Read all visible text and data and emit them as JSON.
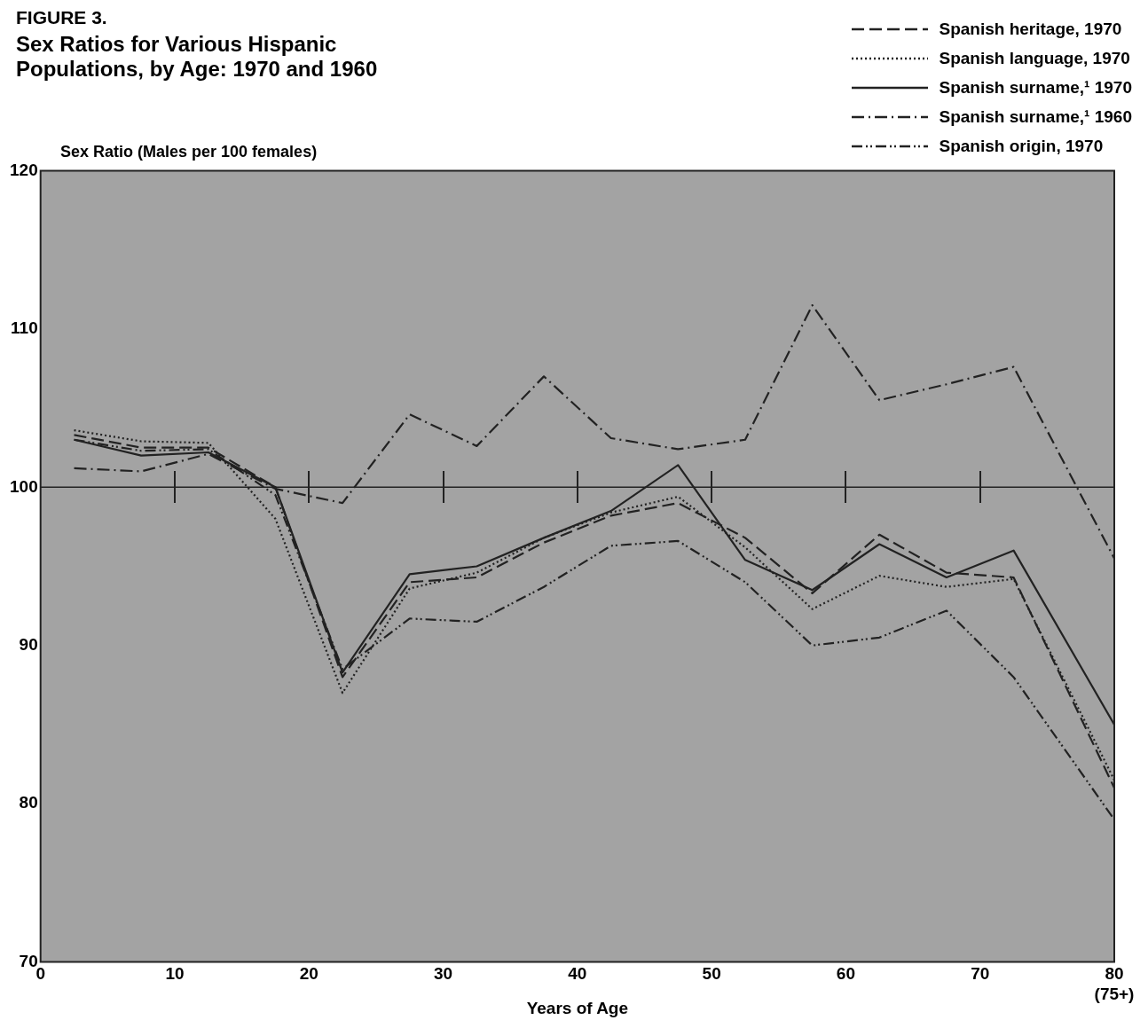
{
  "chart_data": {
    "type": "line",
    "subtitle": "FIGURE 3.",
    "title": "Sex Ratios for Various Hispanic Populations, by Age: 1970 and 1960",
    "xlabel": "Years of Age",
    "ylabel": "Sex Ratio (Males per 100 females)",
    "x": [
      2.5,
      7.5,
      12.5,
      17.5,
      22.5,
      27.5,
      32.5,
      37.5,
      42.5,
      47.5,
      52.5,
      57.5,
      62.5,
      67.5,
      72.5,
      80
    ],
    "series": [
      {
        "name": "Spanish heritage, 1970",
        "color": "#222222",
        "line_style": "dashed",
        "values": [
          103.3,
          102.5,
          102.5,
          100.0,
          88.0,
          94.0,
          94.3,
          96.5,
          98.2,
          99.0,
          96.8,
          93.3,
          97.0,
          94.6,
          94.3,
          81.0
        ]
      },
      {
        "name": "Spanish language, 1970",
        "color": "#222222",
        "line_style": "dotted",
        "values": [
          103.6,
          102.9,
          102.8,
          98.0,
          87.0,
          93.6,
          94.6,
          96.8,
          98.4,
          99.4,
          96.2,
          92.3,
          94.4,
          93.7,
          94.2,
          81.5
        ]
      },
      {
        "name": "Spanish surname,¹ 1970",
        "color": "#222222",
        "line_style": "solid",
        "values": [
          103.0,
          102.0,
          102.2,
          100.0,
          88.3,
          94.5,
          95.0,
          96.8,
          98.5,
          101.4,
          95.4,
          93.5,
          96.4,
          94.3,
          96.0,
          85.0
        ]
      },
      {
        "name": "Spanish surname,¹ 1960",
        "color": "#222222",
        "line_style": "dashdot",
        "values": [
          101.2,
          101.0,
          102.1,
          99.9,
          99.0,
          104.6,
          102.6,
          107.0,
          103.1,
          102.4,
          103.0,
          111.5,
          105.5,
          106.5,
          107.6,
          95.5
        ]
      },
      {
        "name": "Spanish origin, 1970",
        "color": "#222222",
        "line_style": "dashdotdot",
        "values": [
          103.0,
          102.3,
          102.4,
          99.5,
          88.5,
          91.7,
          91.5,
          93.7,
          96.3,
          96.6,
          94.0,
          90.0,
          90.5,
          92.2,
          88.0,
          79.0
        ]
      }
    ],
    "xlim": [
      0,
      80
    ],
    "xticks": [
      0,
      10,
      20,
      30,
      40,
      50,
      60,
      70,
      {
        "value": 80,
        "label": "80\n(75+)"
      }
    ],
    "ylim": [
      70,
      120
    ],
    "yticks": [
      70,
      80,
      90,
      100,
      110,
      120
    ],
    "ref_lines": [
      {
        "axis": "y",
        "value": 100,
        "color": "#222222"
      }
    ],
    "legend": "top right",
    "marker": "none"
  }
}
